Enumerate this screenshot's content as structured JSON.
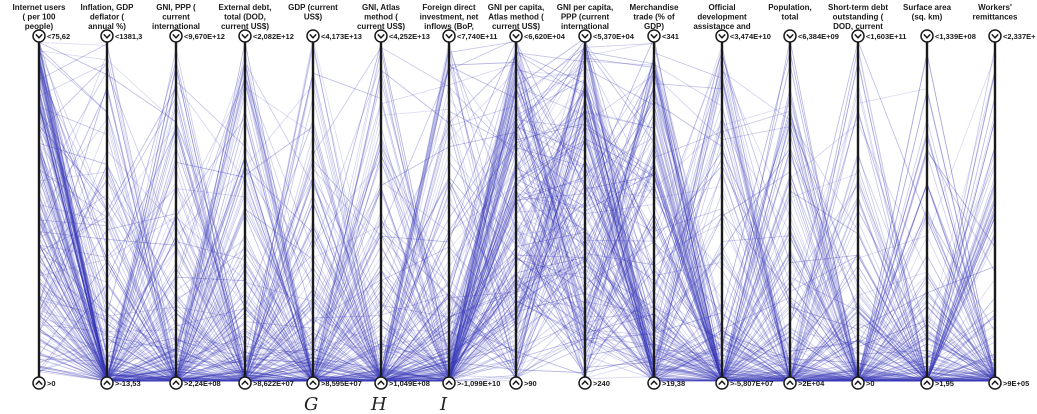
{
  "chart_data": {
    "type": "parallel_coordinates",
    "line_color": "#3a3ab8",
    "axes": [
      {
        "name": "Internet users ( per 100 people)",
        "max_label": "<75,62",
        "min_label": ">0"
      },
      {
        "name": "Inflation, GDP deflator ( annual %)",
        "max_label": "<1381,3",
        "min_label": ">-13,53"
      },
      {
        "name": "GNI, PPP ( current international $)",
        "max_label": "<9,670E+12",
        "min_label": ">2,24E+08"
      },
      {
        "name": "External debt, total (DOD, current US$)",
        "max_label": "<2,082E+12",
        "min_label": ">8,622E+07"
      },
      {
        "name": "GDP (current US$)",
        "max_label": "<4,173E+13",
        "min_label": ">8,595E+07"
      },
      {
        "name": "GNI, Atlas method ( current US$)",
        "max_label": "<4,252E+13",
        "min_label": ">1,049E+08"
      },
      {
        "name": "Foreign direct investment, net inflows (BoP, current US$)",
        "max_label": "<7,740E+11",
        "min_label": ">-1,099E+10"
      },
      {
        "name": "GNI per capita, Atlas method ( current US$)",
        "max_label": "<6,620E+04",
        "min_label": ">90"
      },
      {
        "name": "GNI per capita, PPP (current international $)",
        "max_label": "<5,370E+04",
        "min_label": ">240"
      },
      {
        "name": "Merchandise trade (% of GDP)",
        "max_label": "<341",
        "min_label": ">19,38"
      },
      {
        "name": "Official development assistance and official aid",
        "max_label": "<3,474E+10",
        "min_label": ">-5,807E+07"
      },
      {
        "name": "Population, total",
        "max_label": "<6,384E+09",
        "min_label": ">2E+04"
      },
      {
        "name": "Short-term debt outstanding ( DOD, current US$)",
        "max_label": "<1,603E+11",
        "min_label": ">0"
      },
      {
        "name": "Surface area (sq. km)",
        "max_label": "<1,339E+08",
        "min_label": ">1,95"
      },
      {
        "name": "Workers' remittances",
        "max_label": "<2,337E+",
        "min_label": ">9E+05"
      }
    ],
    "figure_labels": [
      "G",
      "H",
      "I"
    ]
  }
}
